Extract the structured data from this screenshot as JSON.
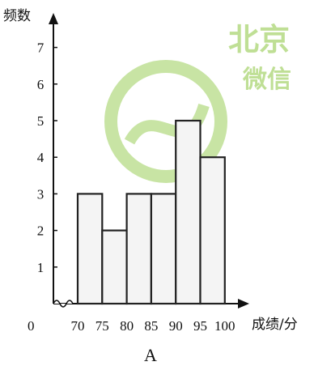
{
  "chart_data": {
    "type": "bar",
    "title": "",
    "ylabel": "频数",
    "xlabel": "成绩/分",
    "origin_label": "0",
    "bin_edges": [
      70,
      75,
      80,
      85,
      90,
      95,
      100
    ],
    "x_tick_labels": [
      "70",
      "75",
      "80",
      "85",
      "90",
      "95",
      "100"
    ],
    "categories": [
      "70-75",
      "75-80",
      "80-85",
      "85-90",
      "90-95",
      "95-100"
    ],
    "values": [
      3,
      2,
      3,
      3,
      5,
      4
    ],
    "y_ticks": [
      1,
      2,
      3,
      4,
      5,
      6,
      7
    ],
    "ylim": [
      0,
      7
    ],
    "grid": false,
    "bar_fill": "#f4f4f4",
    "bar_stroke": "#222222"
  },
  "caption": "A",
  "watermark": {
    "line1": "北京",
    "line2": "微信",
    "color": "#8cc63f"
  }
}
